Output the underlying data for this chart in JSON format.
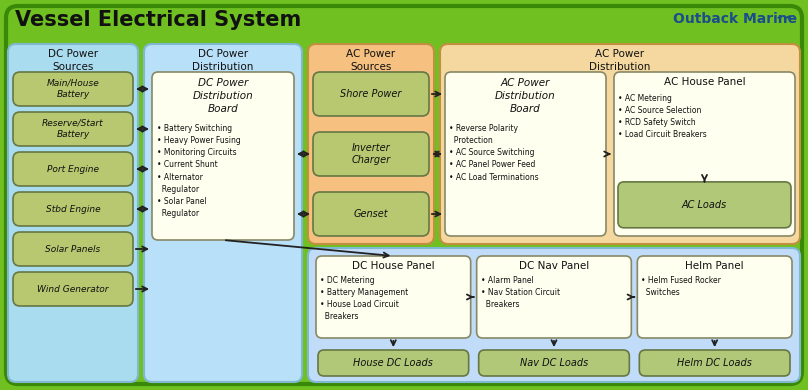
{
  "title": "Vessel Electrical System",
  "bg_outer": "#6fc020",
  "bg_dc_sources": "#aadcf0",
  "bg_dc_dist": "#b8e0f8",
  "bg_ac_sources": "#f5c080",
  "bg_ac_dist": "#f5d8a0",
  "bg_dc_lower": "#c0dcf8",
  "box_source_fill": "#b8c870",
  "box_board_fill": "#fffff0",
  "box_loads_fill": "#b0c878",
  "box_panel_fill": "#fffff0",
  "outback_color": "#1a4d8c",
  "dc_source_boxes": [
    "Main/House\nBattery",
    "Reserve/Start\nBattery",
    "Port Engine",
    "Stbd Engine",
    "Solar Panels",
    "Wind Generator"
  ],
  "dc_dist_board_title": "DC Power\nDistribution\nBoard",
  "dc_dist_board_bullets": "• Battery Switching\n• Heavy Power Fusing\n• Monitoring Circuits\n• Current Shunt\n• Alternator\n  Regulator\n• Solar Panel\n  Regulator",
  "ac_source_boxes": [
    "Shore Power",
    "Inverter\nCharger",
    "Genset"
  ],
  "ac_dist_board_title": "AC Power\nDistribution\nBoard",
  "ac_dist_board_bullets": "• Reverse Polarity\n  Protection\n• AC Source Switching\n• AC Panel Power Feed\n• AC Load Terminations",
  "ac_house_panel_title": "AC House Panel",
  "ac_house_panel_bullets": "• AC Metering\n• AC Source Selection\n• RCD Safety Switch\n• Load Circuit Breakers",
  "ac_loads_label": "AC Loads",
  "dc_house_panel_title": "DC House Panel",
  "dc_house_panel_bullets": "• DC Metering\n• Battery Management\n• House Load Circuit\n  Breakers",
  "dc_nav_panel_title": "DC Nav Panel",
  "dc_nav_panel_bullets": "• Alarm Panel\n• Nav Station Circuit\n  Breakers",
  "helm_panel_title": "Helm Panel",
  "helm_panel_bullets": "• Helm Fused Rocker\n  Switches",
  "house_dc_loads": "House DC Loads",
  "nav_dc_loads": "Nav DC Loads",
  "helm_dc_loads": "Helm DC Loads"
}
